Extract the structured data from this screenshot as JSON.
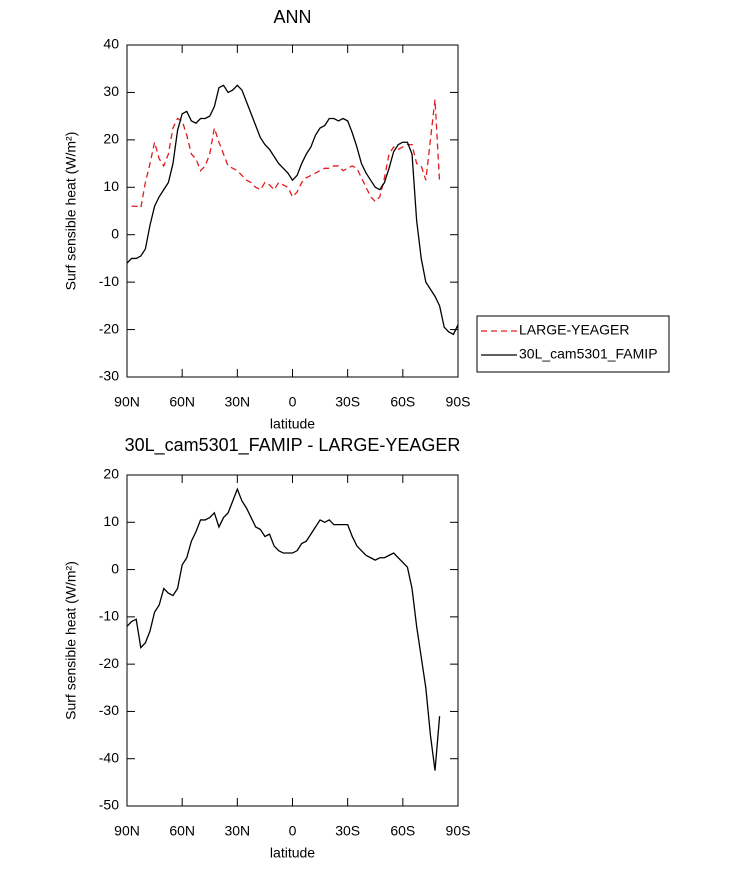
{
  "chart_data": [
    {
      "type": "line",
      "title": "ANN",
      "x_label": "latitude",
      "y_label": "Surf sensible heat (W/m²)",
      "x": [
        90,
        87.5,
        85,
        82.5,
        80,
        77.5,
        75,
        72.5,
        70,
        67.5,
        65,
        62.5,
        60,
        57.5,
        55,
        52.5,
        50,
        47.5,
        45,
        42.5,
        40,
        37.5,
        35,
        32.5,
        30,
        27.5,
        25,
        22.5,
        20,
        17.5,
        15,
        12.5,
        10,
        7.5,
        5,
        2.5,
        0,
        -2.5,
        -5,
        -7.5,
        -10,
        -12.5,
        -15,
        -17.5,
        -20,
        -22.5,
        -25,
        -27.5,
        -30,
        -32.5,
        -35,
        -37.5,
        -40,
        -42.5,
        -45,
        -47.5,
        -50,
        -52.5,
        -55,
        -57.5,
        -60,
        -62.5,
        -65,
        -67.5,
        -70,
        -72.5,
        -75,
        -77.5,
        -80,
        -82.5,
        -85,
        -87.5,
        -90
      ],
      "series": [
        {
          "name": "LARGE-YEAGER",
          "color": "#e41a1c",
          "dashed": true,
          "values": [
            null,
            6,
            6,
            5.7,
            11,
            15,
            19.5,
            16,
            14.5,
            17,
            22.5,
            24.5,
            24,
            21,
            17,
            16,
            13.5,
            14.5,
            17,
            22.5,
            19.5,
            17,
            14.5,
            14,
            13.5,
            12.5,
            11.5,
            11,
            10,
            9.5,
            11,
            10.5,
            9.5,
            11,
            10.5,
            10,
            8,
            9,
            11,
            12,
            12.5,
            13,
            13.5,
            14,
            14,
            14.5,
            14.5,
            13.5,
            14,
            14.5,
            14,
            12,
            10,
            8,
            7,
            8,
            12,
            17,
            18.5,
            18,
            18.5,
            19,
            19,
            15,
            14.5,
            11.5,
            20,
            28.5,
            11,
            null,
            null,
            null,
            null
          ]
        },
        {
          "name": "30L_cam5301_FAMIP",
          "color": "#000000",
          "dashed": false,
          "values": [
            -6,
            -5,
            -5,
            -4.5,
            -3,
            2,
            6,
            8,
            9.5,
            11,
            15,
            22,
            25.5,
            26,
            24,
            23.5,
            24.5,
            24.5,
            25,
            27,
            31,
            31.5,
            30,
            30.5,
            31.5,
            30.5,
            28,
            25.5,
            23,
            20.5,
            19,
            18,
            16.5,
            15,
            14,
            13,
            11.5,
            12.5,
            15,
            17,
            18.5,
            21,
            22.5,
            23,
            24.5,
            24.5,
            24,
            24.5,
            24,
            21.5,
            18.5,
            15,
            13,
            11.5,
            10,
            9.5,
            11,
            14,
            17.5,
            19,
            19.5,
            19.5,
            17,
            3,
            -5,
            -10,
            -11.5,
            -13,
            -15,
            -19.5,
            -20.5,
            -21,
            -19
          ]
        }
      ],
      "xlim": [
        90,
        -90
      ],
      "xticks": [
        {
          "value": 90,
          "label": "90N"
        },
        {
          "value": 60,
          "label": "60N"
        },
        {
          "value": 30,
          "label": "30N"
        },
        0,
        {
          "value": -30,
          "label": "30S"
        },
        {
          "value": -60,
          "label": "60S"
        },
        {
          "value": -90,
          "label": "90S"
        }
      ],
      "ylim": [
        -30,
        40
      ],
      "yticks": [
        -30,
        -20,
        -10,
        0,
        10,
        20,
        30,
        40
      ],
      "legend": "right"
    },
    {
      "type": "line",
      "title": "30L_cam5301_FAMIP - LARGE-YEAGER",
      "x_label": "latitude",
      "y_label": "Surf sensible heat (W/m²)",
      "x": [
        90,
        87.5,
        85,
        82.5,
        80,
        77.5,
        75,
        72.5,
        70,
        67.5,
        65,
        62.5,
        60,
        57.5,
        55,
        52.5,
        50,
        47.5,
        45,
        42.5,
        40,
        37.5,
        35,
        32.5,
        30,
        27.5,
        25,
        22.5,
        20,
        17.5,
        15,
        12.5,
        10,
        7.5,
        5,
        2.5,
        0,
        -2.5,
        -5,
        -7.5,
        -10,
        -12.5,
        -15,
        -17.5,
        -20,
        -22.5,
        -25,
        -27.5,
        -30,
        -32.5,
        -35,
        -37.5,
        -40,
        -42.5,
        -45,
        -47.5,
        -50,
        -52.5,
        -55,
        -57.5,
        -60,
        -62.5,
        -65,
        -67.5,
        -70,
        -72.5,
        -75,
        -77.5,
        -80,
        -82.5,
        -85,
        -87.5,
        -90
      ],
      "values": [
        -12,
        -11,
        -10.5,
        -16.5,
        -15.5,
        -13,
        -9,
        -7.5,
        -4,
        -5,
        -5.5,
        -4,
        1,
        2.5,
        6,
        8,
        10.5,
        10.5,
        11,
        12,
        9,
        11,
        12,
        14.5,
        17,
        14.5,
        13,
        11,
        9,
        8.5,
        7,
        7.5,
        5,
        4,
        3.5,
        3.5,
        3.5,
        4,
        5.5,
        6,
        7.5,
        9,
        10.5,
        10,
        10.5,
        9.5,
        9.5,
        9.5,
        9.5,
        7,
        5,
        4,
        3,
        2.5,
        2,
        2.5,
        2.5,
        3,
        3.5,
        2.5,
        1.5,
        0.5,
        -4,
        -12,
        -18.5,
        -25,
        -35,
        -42.5,
        -31,
        null,
        null,
        null,
        null
      ],
      "color": "#000000",
      "xlim": [
        90,
        -90
      ],
      "xticks": [
        {
          "value": 90,
          "label": "90N"
        },
        {
          "value": 60,
          "label": "60N"
        },
        {
          "value": 30,
          "label": "30N"
        },
        0,
        {
          "value": -30,
          "label": "30S"
        },
        {
          "value": -60,
          "label": "60S"
        },
        {
          "value": -90,
          "label": "90S"
        }
      ],
      "ylim": [
        -50,
        20
      ],
      "yticks": [
        -50,
        -40,
        -30,
        -20,
        -10,
        0,
        10,
        20
      ]
    }
  ]
}
